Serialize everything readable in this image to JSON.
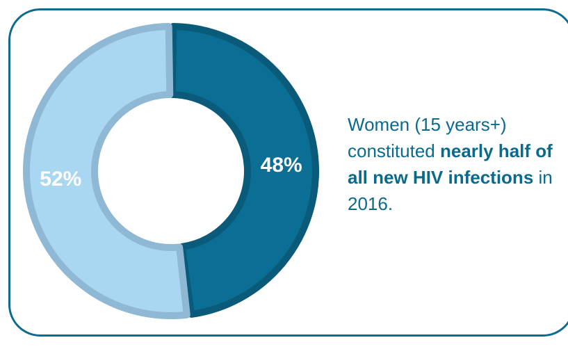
{
  "colors": {
    "frame": "#0e6b8f",
    "dark_fill": "#0b6f95",
    "dark_outline": "#0a5a7a",
    "light_fill": "#a9d6f1",
    "light_outline": "#8fb8d4",
    "caption": "#0a6a8c"
  },
  "chart_data": {
    "type": "pie",
    "donut": true,
    "title": "",
    "slices": [
      {
        "label": "48%",
        "value": 48,
        "color": "#0b6f95",
        "outline": "#0a5a7a"
      },
      {
        "label": "52%",
        "value": 52,
        "color": "#a9d6f1",
        "outline": "#8fb8d4"
      }
    ]
  },
  "caption": {
    "part1": "Women (15 years+) constituted ",
    "bold": "nearly half of all new HIV infections",
    "part2": " in 2016."
  }
}
